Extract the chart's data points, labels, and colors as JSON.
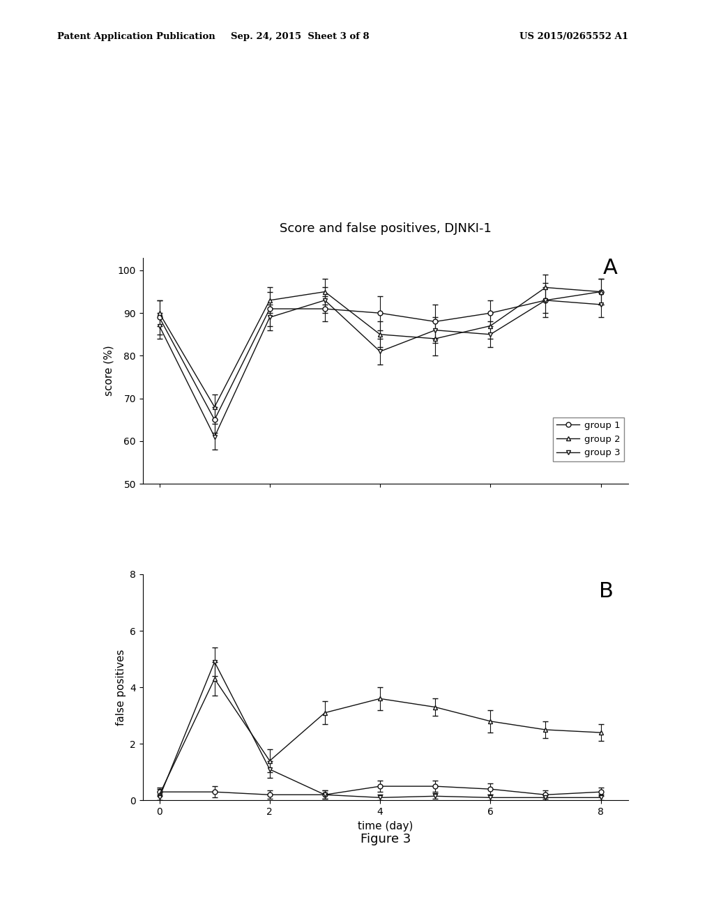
{
  "title": "Score and false positives, DJNKI-1",
  "panel_a_label": "A",
  "panel_b_label": "B",
  "figure_caption": "Figure 3",
  "xlabel": "time (day)",
  "ylabel_a": "score (%)",
  "ylabel_b": "false positives",
  "header_left": "Patent Application Publication",
  "header_mid": "Sep. 24, 2015  Sheet 3 of 8",
  "header_right": "US 2015/0265552 A1",
  "x_ticks": [
    0,
    2,
    4,
    6,
    8
  ],
  "x_lim": [
    -0.3,
    8.5
  ],
  "panel_a": {
    "ylim": [
      50,
      103
    ],
    "yticks": [
      50,
      60,
      70,
      80,
      90,
      100
    ],
    "group1": {
      "x": [
        0,
        1,
        2,
        3,
        4,
        5,
        6,
        7,
        8
      ],
      "y": [
        89,
        65,
        91,
        91,
        90,
        88,
        90,
        93,
        95
      ],
      "yerr": [
        4,
        3,
        4,
        3,
        4,
        4,
        3,
        4,
        3
      ],
      "marker": "o",
      "label": "group 1"
    },
    "group2": {
      "x": [
        0,
        1,
        2,
        3,
        4,
        5,
        6,
        7,
        8
      ],
      "y": [
        90,
        68,
        93,
        95,
        85,
        84,
        87,
        96,
        95
      ],
      "yerr": [
        3,
        3,
        3,
        3,
        3,
        4,
        3,
        3,
        3
      ],
      "marker": "^",
      "label": "group 2"
    },
    "group3": {
      "x": [
        0,
        1,
        2,
        3,
        4,
        5,
        6,
        7,
        8
      ],
      "y": [
        87,
        61,
        89,
        93,
        81,
        86,
        85,
        93,
        92
      ],
      "yerr": [
        3,
        3,
        3,
        3,
        3,
        3,
        3,
        3,
        3
      ],
      "marker": "v",
      "label": "group 3"
    }
  },
  "panel_b": {
    "ylim": [
      0,
      8
    ],
    "yticks": [
      0,
      2,
      4,
      6,
      8
    ],
    "group1": {
      "x": [
        0,
        1,
        2,
        3,
        4,
        5,
        6,
        7,
        8
      ],
      "y": [
        0.3,
        0.3,
        0.2,
        0.2,
        0.5,
        0.5,
        0.4,
        0.2,
        0.3
      ],
      "yerr": [
        0.15,
        0.2,
        0.15,
        0.15,
        0.2,
        0.2,
        0.2,
        0.15,
        0.15
      ],
      "marker": "o",
      "label": "group 1"
    },
    "group2": {
      "x": [
        0,
        1,
        2,
        3,
        4,
        5,
        6,
        7,
        8
      ],
      "y": [
        0.2,
        4.3,
        1.4,
        3.1,
        3.6,
        3.3,
        2.8,
        2.5,
        2.4
      ],
      "yerr": [
        0.2,
        0.6,
        0.4,
        0.4,
        0.4,
        0.3,
        0.4,
        0.3,
        0.3
      ],
      "marker": "^",
      "label": "group 2"
    },
    "group3": {
      "x": [
        0,
        1,
        2,
        3,
        4,
        5,
        6,
        7,
        8
      ],
      "y": [
        0.1,
        4.9,
        1.1,
        0.2,
        0.1,
        0.15,
        0.1,
        0.1,
        0.1
      ],
      "yerr": [
        0.1,
        0.5,
        0.3,
        0.15,
        0.1,
        0.1,
        0.1,
        0.1,
        0.1
      ],
      "marker": "v",
      "label": "group 3"
    }
  },
  "line_color": "#111111",
  "bg_color": "#ffffff"
}
